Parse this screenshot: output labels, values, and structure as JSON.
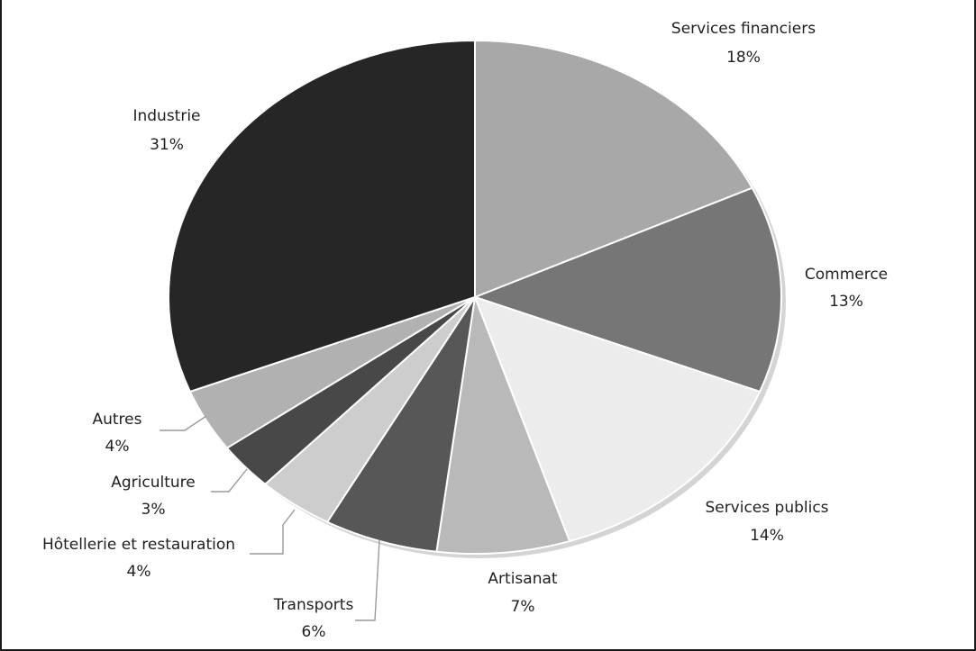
{
  "chart_data": {
    "type": "pie",
    "title": "",
    "start_angle_deg": -90,
    "direction": "clockwise",
    "legend": "none",
    "slices": [
      {
        "label": "Services financiers",
        "value": 18,
        "value_label": "18%",
        "color": "#a8a8a8"
      },
      {
        "label": "Commerce",
        "value": 13,
        "value_label": "13%",
        "color": "#767676"
      },
      {
        "label": "Services publics",
        "value": 14,
        "value_label": "14%",
        "color": "#ececec"
      },
      {
        "label": "Artisanat",
        "value": 7,
        "value_label": "7%",
        "color": "#b9b9b9"
      },
      {
        "label": "Transports",
        "value": 6,
        "value_label": "6%",
        "color": "#575757"
      },
      {
        "label": "Hôtellerie et restauration",
        "value": 4,
        "value_label": "4%",
        "color": "#cdcdcd"
      },
      {
        "label": "Agriculture",
        "value": 3,
        "value_label": "3%",
        "color": "#484848"
      },
      {
        "label": "Autres",
        "value": 4,
        "value_label": "4%",
        "color": "#b1b1b1"
      },
      {
        "label": "Industrie",
        "value": 31,
        "value_label": "31%",
        "color": "#262626"
      }
    ]
  }
}
